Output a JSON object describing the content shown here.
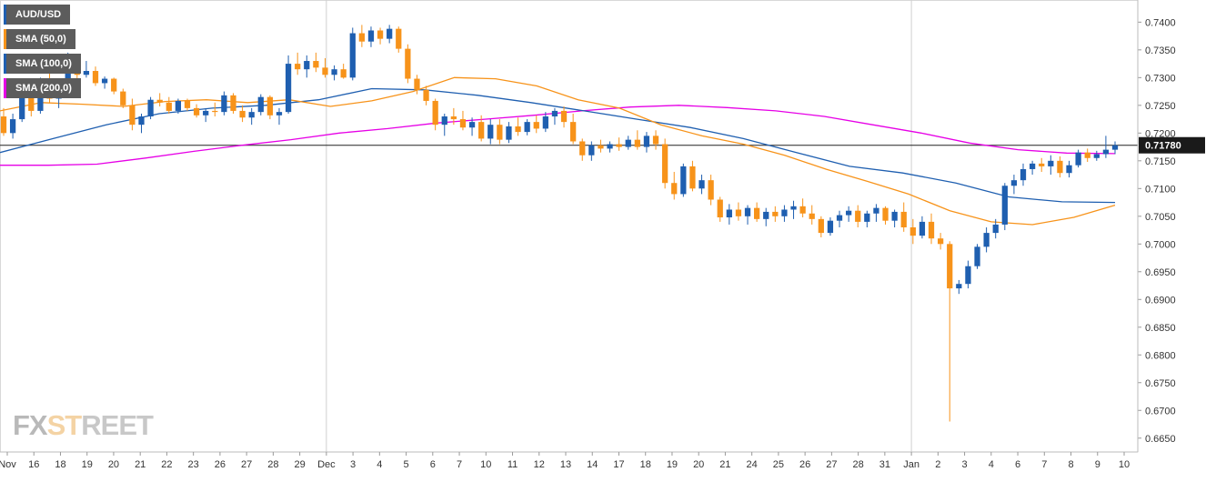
{
  "chart_data": {
    "type": "candlestick",
    "title": "AUD/USD",
    "series": [
      {
        "name": "AUD/USD",
        "kind": "candlestick"
      },
      {
        "name": "SMA (50,0)",
        "kind": "line",
        "color": "#f7931a"
      },
      {
        "name": "SMA (100,0)",
        "kind": "line",
        "color": "#1f5fb0"
      },
      {
        "name": "SMA (200,0)",
        "kind": "line",
        "color": "#e600e6"
      }
    ],
    "ylim": [
      0.6625,
      0.7435
    ],
    "y_ticks": [
      "0.7400",
      "0.7350",
      "0.7300",
      "0.7250",
      "0.7200",
      "0.7150",
      "0.7100",
      "0.7050",
      "0.7000",
      "0.6950",
      "0.6900",
      "0.6850",
      "0.6800",
      "0.6750",
      "0.6700",
      "0.6650"
    ],
    "x_ticks": [
      "Nov",
      "16",
      "18",
      "19",
      "20",
      "21",
      "22",
      "23",
      "26",
      "27",
      "28",
      "29",
      "Dec",
      "3",
      "4",
      "5",
      "6",
      "7",
      "10",
      "11",
      "12",
      "13",
      "14",
      "17",
      "18",
      "19",
      "20",
      "21",
      "24",
      "25",
      "26",
      "27",
      "28",
      "31",
      "Jan",
      "2",
      "3",
      "4",
      "6",
      "7",
      "8",
      "9",
      "10"
    ],
    "current_price": 0.7178,
    "current_price_label": "0.71780",
    "bull_color": "#1f5fb0",
    "bear_color": "#f7931a",
    "sma50_color": "#f7931a",
    "sma100_color": "#1f5fb0",
    "sma200_color": "#e600e6",
    "sma50_values": [
      0.724,
      0.7255,
      0.7252,
      0.7248,
      0.7257,
      0.726,
      0.7255,
      0.726,
      0.7248,
      0.7258,
      0.7275,
      0.73,
      0.7298,
      0.7285,
      0.726,
      0.7245,
      0.7215,
      0.7195,
      0.718,
      0.716,
      0.7135,
      0.7113,
      0.709,
      0.706,
      0.704,
      0.7035,
      0.7048,
      0.707
    ],
    "sma100_values": [
      0.7165,
      0.719,
      0.7215,
      0.7235,
      0.7245,
      0.725,
      0.726,
      0.728,
      0.7278,
      0.7268,
      0.7255,
      0.724,
      0.7225,
      0.721,
      0.719,
      0.7165,
      0.714,
      0.7128,
      0.711,
      0.7085,
      0.7076,
      0.7075
    ],
    "sma200_values": [
      0.7142,
      0.7142,
      0.7144,
      0.7155,
      0.7167,
      0.7178,
      0.7188,
      0.72,
      0.7208,
      0.7218,
      0.7225,
      0.7232,
      0.724,
      0.7247,
      0.725,
      0.7246,
      0.724,
      0.723,
      0.7215,
      0.72,
      0.7182,
      0.717,
      0.7164,
      0.7163
    ],
    "candles_ohlc": [
      [
        0.723,
        0.7245,
        0.7195,
        0.72
      ],
      [
        0.72,
        0.7235,
        0.719,
        0.7225
      ],
      [
        0.7225,
        0.727,
        0.722,
        0.7265
      ],
      [
        0.7265,
        0.729,
        0.723,
        0.724
      ],
      [
        0.724,
        0.73,
        0.7235,
        0.729
      ],
      [
        0.729,
        0.731,
        0.7255,
        0.7262
      ],
      [
        0.7262,
        0.728,
        0.7245,
        0.727
      ],
      [
        0.727,
        0.7345,
        0.7265,
        0.7335
      ],
      [
        0.7335,
        0.734,
        0.729,
        0.7305
      ],
      [
        0.7305,
        0.733,
        0.73,
        0.7312
      ],
      [
        0.7312,
        0.732,
        0.7285,
        0.729
      ],
      [
        0.729,
        0.7302,
        0.728,
        0.7298
      ],
      [
        0.7298,
        0.73,
        0.727,
        0.7275
      ],
      [
        0.7275,
        0.728,
        0.7245,
        0.725
      ],
      [
        0.725,
        0.7262,
        0.7205,
        0.7215
      ],
      [
        0.7215,
        0.7235,
        0.72,
        0.723
      ],
      [
        0.723,
        0.7265,
        0.7225,
        0.726
      ],
      [
        0.726,
        0.7272,
        0.7248,
        0.7255
      ],
      [
        0.7255,
        0.7265,
        0.7235,
        0.724
      ],
      [
        0.724,
        0.7262,
        0.7235,
        0.7258
      ],
      [
        0.7258,
        0.7262,
        0.724,
        0.7245
      ],
      [
        0.7245,
        0.7252,
        0.7228,
        0.7232
      ],
      [
        0.7232,
        0.7245,
        0.722,
        0.724
      ],
      [
        0.724,
        0.7255,
        0.723,
        0.7238
      ],
      [
        0.7238,
        0.7275,
        0.7232,
        0.7268
      ],
      [
        0.7268,
        0.7272,
        0.7235,
        0.724
      ],
      [
        0.724,
        0.725,
        0.722,
        0.7228
      ],
      [
        0.7228,
        0.7245,
        0.7215,
        0.7238
      ],
      [
        0.7238,
        0.727,
        0.7232,
        0.7265
      ],
      [
        0.7265,
        0.7268,
        0.7225,
        0.7232
      ],
      [
        0.7232,
        0.7245,
        0.7215,
        0.7238
      ],
      [
        0.7238,
        0.734,
        0.7235,
        0.7325
      ],
      [
        0.7325,
        0.7345,
        0.7305,
        0.7315
      ],
      [
        0.7315,
        0.734,
        0.73,
        0.733
      ],
      [
        0.733,
        0.7345,
        0.731,
        0.7318
      ],
      [
        0.7318,
        0.7335,
        0.73,
        0.7305
      ],
      [
        0.7305,
        0.7322,
        0.7295,
        0.7315
      ],
      [
        0.7315,
        0.7325,
        0.7298,
        0.73
      ],
      [
        0.73,
        0.739,
        0.7295,
        0.738
      ],
      [
        0.738,
        0.7395,
        0.7355,
        0.7365
      ],
      [
        0.7365,
        0.7392,
        0.7355,
        0.7385
      ],
      [
        0.7385,
        0.739,
        0.736,
        0.737
      ],
      [
        0.737,
        0.7395,
        0.7362,
        0.7388
      ],
      [
        0.7388,
        0.7392,
        0.7345,
        0.7352
      ],
      [
        0.7352,
        0.736,
        0.729,
        0.7298
      ],
      [
        0.7298,
        0.7305,
        0.727,
        0.7278
      ],
      [
        0.7278,
        0.7285,
        0.725,
        0.7258
      ],
      [
        0.7258,
        0.7262,
        0.7205,
        0.7215
      ],
      [
        0.7215,
        0.7235,
        0.7195,
        0.723
      ],
      [
        0.723,
        0.7245,
        0.7215,
        0.7225
      ],
      [
        0.7225,
        0.724,
        0.7205,
        0.721
      ],
      [
        0.721,
        0.7228,
        0.7195,
        0.722
      ],
      [
        0.722,
        0.7232,
        0.7185,
        0.719
      ],
      [
        0.719,
        0.7225,
        0.718,
        0.7215
      ],
      [
        0.7215,
        0.7225,
        0.718,
        0.7188
      ],
      [
        0.7188,
        0.722,
        0.7182,
        0.7212
      ],
      [
        0.7212,
        0.7228,
        0.7195,
        0.7202
      ],
      [
        0.7202,
        0.7225,
        0.7196,
        0.722
      ],
      [
        0.722,
        0.7232,
        0.72,
        0.7208
      ],
      [
        0.7208,
        0.7238,
        0.7202,
        0.723
      ],
      [
        0.723,
        0.7245,
        0.7215,
        0.724
      ],
      [
        0.724,
        0.7248,
        0.721,
        0.722
      ],
      [
        0.722,
        0.7235,
        0.718,
        0.7185
      ],
      [
        0.7185,
        0.719,
        0.715,
        0.716
      ],
      [
        0.716,
        0.7185,
        0.715,
        0.7178
      ],
      [
        0.7178,
        0.7188,
        0.7165,
        0.7172
      ],
      [
        0.7172,
        0.7185,
        0.7165,
        0.718
      ],
      [
        0.718,
        0.7192,
        0.7168,
        0.7175
      ],
      [
        0.7175,
        0.7195,
        0.717,
        0.7188
      ],
      [
        0.7188,
        0.7205,
        0.717,
        0.7175
      ],
      [
        0.7175,
        0.7202,
        0.7165,
        0.7195
      ],
      [
        0.7195,
        0.7205,
        0.717,
        0.718
      ],
      [
        0.718,
        0.719,
        0.71,
        0.711
      ],
      [
        0.711,
        0.713,
        0.708,
        0.709
      ],
      [
        0.709,
        0.7145,
        0.7085,
        0.714
      ],
      [
        0.714,
        0.715,
        0.7095,
        0.71
      ],
      [
        0.71,
        0.7125,
        0.709,
        0.7115
      ],
      [
        0.7115,
        0.7125,
        0.707,
        0.708
      ],
      [
        0.708,
        0.7085,
        0.704,
        0.7048
      ],
      [
        0.7048,
        0.7072,
        0.7035,
        0.7062
      ],
      [
        0.7062,
        0.7075,
        0.7042,
        0.705
      ],
      [
        0.705,
        0.707,
        0.7035,
        0.7065
      ],
      [
        0.7065,
        0.7075,
        0.704,
        0.7045
      ],
      [
        0.7045,
        0.7065,
        0.7032,
        0.7058
      ],
      [
        0.7058,
        0.7068,
        0.704,
        0.705
      ],
      [
        0.705,
        0.707,
        0.704,
        0.7062
      ],
      [
        0.7062,
        0.7078,
        0.7045,
        0.7068
      ],
      [
        0.7068,
        0.7082,
        0.7048,
        0.7055
      ],
      [
        0.7055,
        0.707,
        0.7035,
        0.7045
      ],
      [
        0.7045,
        0.705,
        0.7012,
        0.702
      ],
      [
        0.702,
        0.7048,
        0.7015,
        0.7042
      ],
      [
        0.7042,
        0.706,
        0.703,
        0.7052
      ],
      [
        0.7052,
        0.7068,
        0.704,
        0.706
      ],
      [
        0.706,
        0.707,
        0.703,
        0.704
      ],
      [
        0.704,
        0.706,
        0.703,
        0.7055
      ],
      [
        0.7055,
        0.7072,
        0.704,
        0.7065
      ],
      [
        0.7065,
        0.7068,
        0.7035,
        0.7042
      ],
      [
        0.7042,
        0.7062,
        0.703,
        0.7058
      ],
      [
        0.7058,
        0.7075,
        0.7022,
        0.703
      ],
      [
        0.703,
        0.7045,
        0.7,
        0.7015
      ],
      [
        0.7015,
        0.705,
        0.701,
        0.704
      ],
      [
        0.704,
        0.7055,
        0.7,
        0.701
      ],
      [
        0.701,
        0.702,
        0.699,
        0.7
      ],
      [
        0.7,
        0.7005,
        0.668,
        0.692
      ],
      [
        0.692,
        0.6935,
        0.691,
        0.6928
      ],
      [
        0.6928,
        0.697,
        0.692,
        0.696
      ],
      [
        0.696,
        0.7,
        0.6955,
        0.6995
      ],
      [
        0.6995,
        0.703,
        0.6985,
        0.702
      ],
      [
        0.702,
        0.7045,
        0.701,
        0.7035
      ],
      [
        0.7035,
        0.711,
        0.7025,
        0.7105
      ],
      [
        0.7105,
        0.7125,
        0.709,
        0.7115
      ],
      [
        0.7115,
        0.7145,
        0.7105,
        0.7135
      ],
      [
        0.7135,
        0.715,
        0.7125,
        0.7145
      ],
      [
        0.7145,
        0.7155,
        0.713,
        0.714
      ],
      [
        0.714,
        0.716,
        0.7125,
        0.715
      ],
      [
        0.715,
        0.7158,
        0.712,
        0.7128
      ],
      [
        0.7128,
        0.715,
        0.712,
        0.7142
      ],
      [
        0.7142,
        0.717,
        0.7138,
        0.7165
      ],
      [
        0.7165,
        0.7172,
        0.7148,
        0.7155
      ],
      [
        0.7155,
        0.7168,
        0.715,
        0.7162
      ],
      [
        0.7162,
        0.7195,
        0.7155,
        0.717
      ],
      [
        0.717,
        0.7185,
        0.7162,
        0.7178
      ]
    ]
  },
  "legend": [
    {
      "label": "AUD/USD",
      "color": "#1f5fb0"
    },
    {
      "label": "SMA (50,0)",
      "color": "#f7931a"
    },
    {
      "label": "SMA (100,0)",
      "color": "#1f5fb0"
    },
    {
      "label": "SMA (200,0)",
      "color": "#e600e6"
    }
  ],
  "watermark": {
    "part1": "FX",
    "part2": "ST",
    "part3": "REET"
  }
}
